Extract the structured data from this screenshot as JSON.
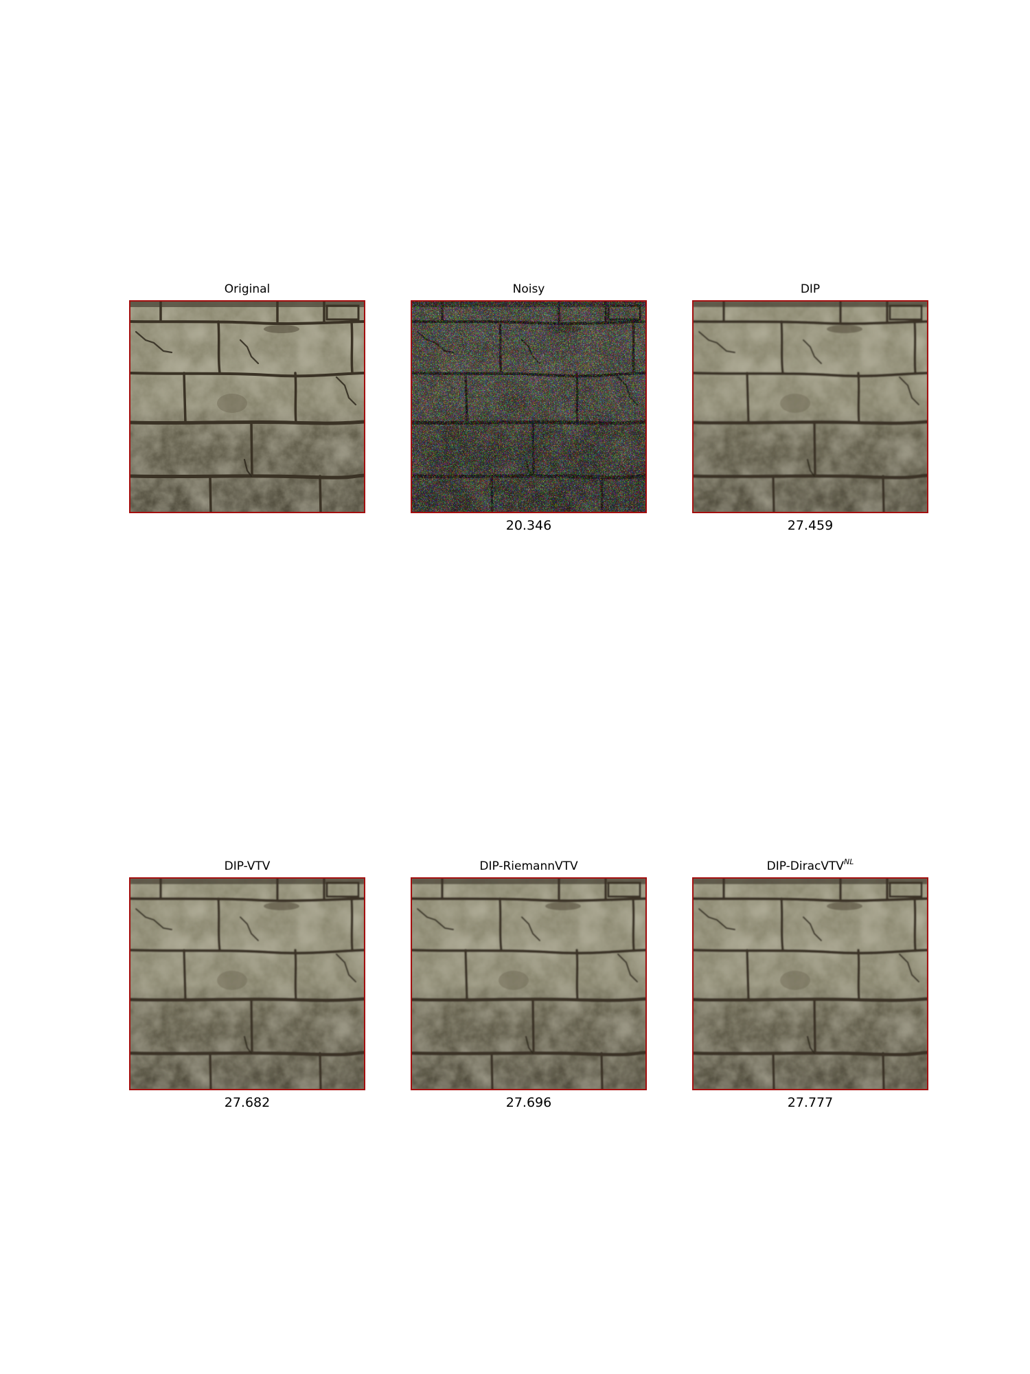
{
  "figure": {
    "panels": [
      {
        "title": "Original",
        "title_sup": "",
        "score": "",
        "image": "brick-wall-texture-clean"
      },
      {
        "title": "Noisy",
        "title_sup": "",
        "score": "20.346",
        "image": "brick-wall-texture-noisy"
      },
      {
        "title": "DIP",
        "title_sup": "",
        "score": "27.459",
        "image": "brick-wall-texture-denoised"
      },
      {
        "title": "DIP-VTV",
        "title_sup": "",
        "score": "27.682",
        "image": "brick-wall-texture-denoised"
      },
      {
        "title": "DIP-RiemannVTV",
        "title_sup": "",
        "score": "27.696",
        "image": "brick-wall-texture-denoised"
      },
      {
        "title": "DIP-DiracVTV",
        "title_sup": "NL",
        "score": "27.777",
        "image": "brick-wall-texture-denoised"
      }
    ],
    "colors": {
      "frame_border": "#a30e0e",
      "stone_light": "#9a9a80",
      "stone_dark": "#54503f",
      "mortar": "#3b3326"
    }
  }
}
